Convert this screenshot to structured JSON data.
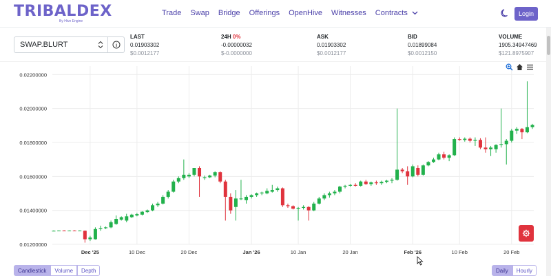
{
  "app": {
    "logo": "TRIBALDEX",
    "logo_sub": "By Hive Engine",
    "login_label": "Login"
  },
  "nav": {
    "items": [
      "Trade",
      "Swap",
      "Bridge",
      "Offerings",
      "OpenHive",
      "Witnesses",
      "Contracts"
    ]
  },
  "pair": {
    "selected": "SWAP.BLURT"
  },
  "stats": {
    "last": {
      "label": "LAST",
      "value": "0.01903302",
      "usd": "$0.0012177"
    },
    "h24": {
      "label": "24H",
      "pct": "0%",
      "value": "-0.00000032",
      "usd": "$-0.0000000"
    },
    "ask": {
      "label": "ASK",
      "value": "0.01903302",
      "usd": "$0.0012177"
    },
    "bid": {
      "label": "BID",
      "value": "0.01899084",
      "usd": "$0.0012150"
    },
    "volume": {
      "label": "VOLUME",
      "value": "1905.34947469",
      "usd": "$121.8975907"
    }
  },
  "icons": {
    "zoom": "zoom-icon",
    "home": "home-icon",
    "menu": "menu-icon",
    "settings": "gear-icon",
    "theme": "moon-icon",
    "info": "info-icon"
  },
  "colors": {
    "up": "#22b14c",
    "down": "#e0333d",
    "accent": "#6d63c9"
  },
  "chart_data": {
    "type": "candlestick",
    "y_ticks": [
      "0.01200000",
      "0.01400000",
      "0.01600000",
      "0.01800000",
      "0.02000000",
      "0.02200000"
    ],
    "ylim": [
      0.012,
      0.0225
    ],
    "x_ticks": [
      "Dec '25",
      "10 Dec",
      "20 Dec",
      "Jan '26",
      "10 Jan",
      "20 Jan",
      "Feb '26",
      "10 Feb",
      "20 Feb"
    ],
    "x_ticks_bold": [
      true,
      false,
      false,
      true,
      false,
      false,
      true,
      false,
      false
    ],
    "x_range": [
      "2025-11-24",
      "2026-02-24"
    ],
    "x_tick_dates": [
      "2025-12-01",
      "2025-12-10",
      "2025-12-20",
      "2026-01-01",
      "2026-01-10",
      "2026-01-20",
      "2026-02-01",
      "2026-02-10",
      "2026-02-20"
    ],
    "grid": true,
    "candles": [
      {
        "t": "2025-11-24",
        "o": 0.0128,
        "h": 0.01282,
        "l": 0.01278,
        "c": 0.0128
      },
      {
        "t": "2025-11-25",
        "o": 0.0128,
        "h": 0.01282,
        "l": 0.01278,
        "c": 0.01281
      },
      {
        "t": "2025-11-26",
        "o": 0.01281,
        "h": 0.01283,
        "l": 0.01279,
        "c": 0.0128
      },
      {
        "t": "2025-11-27",
        "o": 0.0128,
        "h": 0.01282,
        "l": 0.01278,
        "c": 0.01281
      },
      {
        "t": "2025-11-28",
        "o": 0.01281,
        "h": 0.01283,
        "l": 0.01279,
        "c": 0.0128
      },
      {
        "t": "2025-11-29",
        "o": 0.0128,
        "h": 0.01282,
        "l": 0.01278,
        "c": 0.01281
      },
      {
        "t": "2025-11-30",
        "o": 0.0128,
        "h": 0.01282,
        "l": 0.0121,
        "c": 0.0123
      },
      {
        "t": "2025-12-01",
        "o": 0.0123,
        "h": 0.0125,
        "l": 0.0122,
        "c": 0.0124
      },
      {
        "t": "2025-12-02",
        "o": 0.0123,
        "h": 0.013,
        "l": 0.01228,
        "c": 0.0129
      },
      {
        "t": "2025-12-03",
        "o": 0.0129,
        "h": 0.0131,
        "l": 0.0128,
        "c": 0.01295
      },
      {
        "t": "2025-12-04",
        "o": 0.01295,
        "h": 0.01305,
        "l": 0.0129,
        "c": 0.013
      },
      {
        "t": "2025-12-05",
        "o": 0.013,
        "h": 0.0134,
        "l": 0.01295,
        "c": 0.0133
      },
      {
        "t": "2025-12-06",
        "o": 0.0132,
        "h": 0.0137,
        "l": 0.01315,
        "c": 0.0135
      },
      {
        "t": "2025-12-07",
        "o": 0.01345,
        "h": 0.01365,
        "l": 0.0134,
        "c": 0.0136
      },
      {
        "t": "2025-12-08",
        "o": 0.0134,
        "h": 0.0138,
        "l": 0.0133,
        "c": 0.01365
      },
      {
        "t": "2025-12-09",
        "o": 0.0136,
        "h": 0.0138,
        "l": 0.01355,
        "c": 0.01375
      },
      {
        "t": "2025-12-10",
        "o": 0.0137,
        "h": 0.01385,
        "l": 0.01365,
        "c": 0.01378
      },
      {
        "t": "2025-12-11",
        "o": 0.01375,
        "h": 0.01395,
        "l": 0.0137,
        "c": 0.01392
      },
      {
        "t": "2025-12-12",
        "o": 0.0139,
        "h": 0.01405,
        "l": 0.01385,
        "c": 0.014
      },
      {
        "t": "2025-12-13",
        "o": 0.014,
        "h": 0.0144,
        "l": 0.01395,
        "c": 0.0143
      },
      {
        "t": "2025-12-14",
        "o": 0.0143,
        "h": 0.0145,
        "l": 0.0142,
        "c": 0.0144
      },
      {
        "t": "2025-12-15",
        "o": 0.0144,
        "h": 0.0149,
        "l": 0.01435,
        "c": 0.0148
      },
      {
        "t": "2025-12-16",
        "o": 0.0148,
        "h": 0.0152,
        "l": 0.0147,
        "c": 0.0151
      },
      {
        "t": "2025-12-17",
        "o": 0.0151,
        "h": 0.0158,
        "l": 0.01505,
        "c": 0.0157
      },
      {
        "t": "2025-12-18",
        "o": 0.0157,
        "h": 0.016,
        "l": 0.0156,
        "c": 0.0159
      },
      {
        "t": "2025-12-19",
        "o": 0.0159,
        "h": 0.017,
        "l": 0.0158,
        "c": 0.0161
      },
      {
        "t": "2025-12-20",
        "o": 0.016,
        "h": 0.0162,
        "l": 0.0159,
        "c": 0.0161
      },
      {
        "t": "2025-12-21",
        "o": 0.0161,
        "h": 0.0165,
        "l": 0.016,
        "c": 0.0165
      },
      {
        "t": "2025-12-22",
        "o": 0.0165,
        "h": 0.0166,
        "l": 0.0148,
        "c": 0.016
      },
      {
        "t": "2025-12-23",
        "o": 0.0159,
        "h": 0.01605,
        "l": 0.0158,
        "c": 0.01595
      },
      {
        "t": "2025-12-24",
        "o": 0.01595,
        "h": 0.0161,
        "l": 0.0159,
        "c": 0.01605
      },
      {
        "t": "2025-12-25",
        "o": 0.01605,
        "h": 0.0163,
        "l": 0.01595,
        "c": 0.01625
      },
      {
        "t": "2025-12-26",
        "o": 0.01625,
        "h": 0.0163,
        "l": 0.0156,
        "c": 0.0157
      },
      {
        "t": "2025-12-27",
        "o": 0.0157,
        "h": 0.0158,
        "l": 0.0134,
        "c": 0.0148
      },
      {
        "t": "2025-12-28",
        "o": 0.0148,
        "h": 0.015,
        "l": 0.0138,
        "c": 0.014
      },
      {
        "t": "2025-12-29",
        "o": 0.0142,
        "h": 0.0152,
        "l": 0.0134,
        "c": 0.0147
      },
      {
        "t": "2025-12-30",
        "o": 0.0147,
        "h": 0.0158,
        "l": 0.0146,
        "c": 0.0147
      },
      {
        "t": "2025-12-31",
        "o": 0.0146,
        "h": 0.0149,
        "l": 0.0144,
        "c": 0.0148
      },
      {
        "t": "2026-01-01",
        "o": 0.0148,
        "h": 0.01495,
        "l": 0.0147,
        "c": 0.0149
      },
      {
        "t": "2026-01-02",
        "o": 0.0149,
        "h": 0.01505,
        "l": 0.0148,
        "c": 0.015
      },
      {
        "t": "2026-01-03",
        "o": 0.015,
        "h": 0.0151,
        "l": 0.0149,
        "c": 0.01505
      },
      {
        "t": "2026-01-04",
        "o": 0.015,
        "h": 0.0153,
        "l": 0.01495,
        "c": 0.01515
      },
      {
        "t": "2026-01-05",
        "o": 0.0151,
        "h": 0.0155,
        "l": 0.01505,
        "c": 0.0152
      },
      {
        "t": "2026-01-06",
        "o": 0.0152,
        "h": 0.0154,
        "l": 0.0151,
        "c": 0.0153
      },
      {
        "t": "2026-01-07",
        "o": 0.0153,
        "h": 0.01535,
        "l": 0.0142,
        "c": 0.0143
      },
      {
        "t": "2026-01-08",
        "o": 0.0143,
        "h": 0.0144,
        "l": 0.01415,
        "c": 0.01425
      },
      {
        "t": "2026-01-09",
        "o": 0.01425,
        "h": 0.0143,
        "l": 0.01405,
        "c": 0.0141
      },
      {
        "t": "2026-01-10",
        "o": 0.0141,
        "h": 0.0142,
        "l": 0.0134,
        "c": 0.01415
      },
      {
        "t": "2026-01-11",
        "o": 0.01415,
        "h": 0.0143,
        "l": 0.01405,
        "c": 0.0142
      },
      {
        "t": "2026-01-12",
        "o": 0.0142,
        "h": 0.01425,
        "l": 0.0134,
        "c": 0.014
      },
      {
        "t": "2026-01-13",
        "o": 0.014,
        "h": 0.0145,
        "l": 0.01395,
        "c": 0.0144
      },
      {
        "t": "2026-01-14",
        "o": 0.0144,
        "h": 0.0148,
        "l": 0.01435,
        "c": 0.0147
      },
      {
        "t": "2026-01-15",
        "o": 0.0147,
        "h": 0.015,
        "l": 0.0146,
        "c": 0.0149
      },
      {
        "t": "2026-01-16",
        "o": 0.0149,
        "h": 0.0151,
        "l": 0.01475,
        "c": 0.015
      },
      {
        "t": "2026-01-17",
        "o": 0.015,
        "h": 0.0152,
        "l": 0.0149,
        "c": 0.0151
      },
      {
        "t": "2026-01-18",
        "o": 0.0151,
        "h": 0.01545,
        "l": 0.015,
        "c": 0.0154
      },
      {
        "t": "2026-01-19",
        "o": 0.0154,
        "h": 0.0155,
        "l": 0.0153,
        "c": 0.01545
      },
      {
        "t": "2026-01-20",
        "o": 0.01545,
        "h": 0.01555,
        "l": 0.0154,
        "c": 0.0155
      },
      {
        "t": "2026-01-21",
        "o": 0.0155,
        "h": 0.0156,
        "l": 0.0154,
        "c": 0.01545
      },
      {
        "t": "2026-01-22",
        "o": 0.01545,
        "h": 0.01575,
        "l": 0.0154,
        "c": 0.0157
      },
      {
        "t": "2026-01-23",
        "o": 0.0157,
        "h": 0.0158,
        "l": 0.0155,
        "c": 0.01555
      },
      {
        "t": "2026-01-24",
        "o": 0.01555,
        "h": 0.0157,
        "l": 0.01545,
        "c": 0.01565
      },
      {
        "t": "2026-01-25",
        "o": 0.01565,
        "h": 0.01575,
        "l": 0.0155,
        "c": 0.0156
      },
      {
        "t": "2026-01-26",
        "o": 0.0156,
        "h": 0.01575,
        "l": 0.0155,
        "c": 0.01568
      },
      {
        "t": "2026-01-27",
        "o": 0.01568,
        "h": 0.0158,
        "l": 0.0156,
        "c": 0.01575
      },
      {
        "t": "2026-01-28",
        "o": 0.01575,
        "h": 0.0159,
        "l": 0.0156,
        "c": 0.0158
      },
      {
        "t": "2026-01-29",
        "o": 0.0158,
        "h": 0.02,
        "l": 0.01575,
        "c": 0.0164
      },
      {
        "t": "2026-01-30",
        "o": 0.0164,
        "h": 0.0165,
        "l": 0.0162,
        "c": 0.0163
      },
      {
        "t": "2026-01-31",
        "o": 0.0163,
        "h": 0.0166,
        "l": 0.0155,
        "c": 0.016
      },
      {
        "t": "2026-02-01",
        "o": 0.016,
        "h": 0.0167,
        "l": 0.01595,
        "c": 0.0166
      },
      {
        "t": "2026-02-02",
        "o": 0.0165,
        "h": 0.01665,
        "l": 0.016,
        "c": 0.0161
      },
      {
        "t": "2026-02-03",
        "o": 0.0161,
        "h": 0.0167,
        "l": 0.01605,
        "c": 0.01665
      },
      {
        "t": "2026-02-04",
        "o": 0.01665,
        "h": 0.0169,
        "l": 0.0166,
        "c": 0.01685
      },
      {
        "t": "2026-02-05",
        "o": 0.01685,
        "h": 0.0171,
        "l": 0.0168,
        "c": 0.017
      },
      {
        "t": "2026-02-06",
        "o": 0.017,
        "h": 0.0174,
        "l": 0.01695,
        "c": 0.0173
      },
      {
        "t": "2026-02-07",
        "o": 0.0173,
        "h": 0.01745,
        "l": 0.017,
        "c": 0.0171
      },
      {
        "t": "2026-02-08",
        "o": 0.0171,
        "h": 0.0173,
        "l": 0.0169,
        "c": 0.01725
      },
      {
        "t": "2026-02-09",
        "o": 0.01725,
        "h": 0.0183,
        "l": 0.0172,
        "c": 0.0182
      },
      {
        "t": "2026-02-10",
        "o": 0.0182,
        "h": 0.0183,
        "l": 0.0181,
        "c": 0.01815
      },
      {
        "t": "2026-02-11",
        "o": 0.01815,
        "h": 0.0183,
        "l": 0.01805,
        "c": 0.01822
      },
      {
        "t": "2026-02-12",
        "o": 0.01822,
        "h": 0.0183,
        "l": 0.018,
        "c": 0.0181
      },
      {
        "t": "2026-02-13",
        "o": 0.0181,
        "h": 0.0183,
        "l": 0.0178,
        "c": 0.01815
      },
      {
        "t": "2026-02-14",
        "o": 0.01815,
        "h": 0.01825,
        "l": 0.0176,
        "c": 0.0177
      },
      {
        "t": "2026-02-15",
        "o": 0.0177,
        "h": 0.0183,
        "l": 0.0174,
        "c": 0.0176
      },
      {
        "t": "2026-02-16",
        "o": 0.0176,
        "h": 0.0178,
        "l": 0.0172,
        "c": 0.0177
      },
      {
        "t": "2026-02-17",
        "o": 0.0176,
        "h": 0.0179,
        "l": 0.0174,
        "c": 0.01785
      },
      {
        "t": "2026-02-18",
        "o": 0.01785,
        "h": 0.02,
        "l": 0.0177,
        "c": 0.0179
      },
      {
        "t": "2026-02-19",
        "o": 0.0179,
        "h": 0.0182,
        "l": 0.0167,
        "c": 0.0181
      },
      {
        "t": "2026-02-20",
        "o": 0.0181,
        "h": 0.0188,
        "l": 0.018,
        "c": 0.0187
      },
      {
        "t": "2026-02-21",
        "o": 0.0187,
        "h": 0.0189,
        "l": 0.0185,
        "c": 0.0188
      },
      {
        "t": "2026-02-22",
        "o": 0.0188,
        "h": 0.01885,
        "l": 0.0182,
        "c": 0.0186
      },
      {
        "t": "2026-02-23",
        "o": 0.0186,
        "h": 0.0216,
        "l": 0.01855,
        "c": 0.0189
      },
      {
        "t": "2026-02-24",
        "o": 0.0189,
        "h": 0.0191,
        "l": 0.0188,
        "c": 0.01903
      }
    ]
  },
  "controls": {
    "chart_types": [
      "Candlestick",
      "Volume",
      "Depth"
    ],
    "chart_type_active": "Candlestick",
    "intervals": [
      "Daily",
      "Hourly"
    ],
    "interval_active": "Daily"
  }
}
